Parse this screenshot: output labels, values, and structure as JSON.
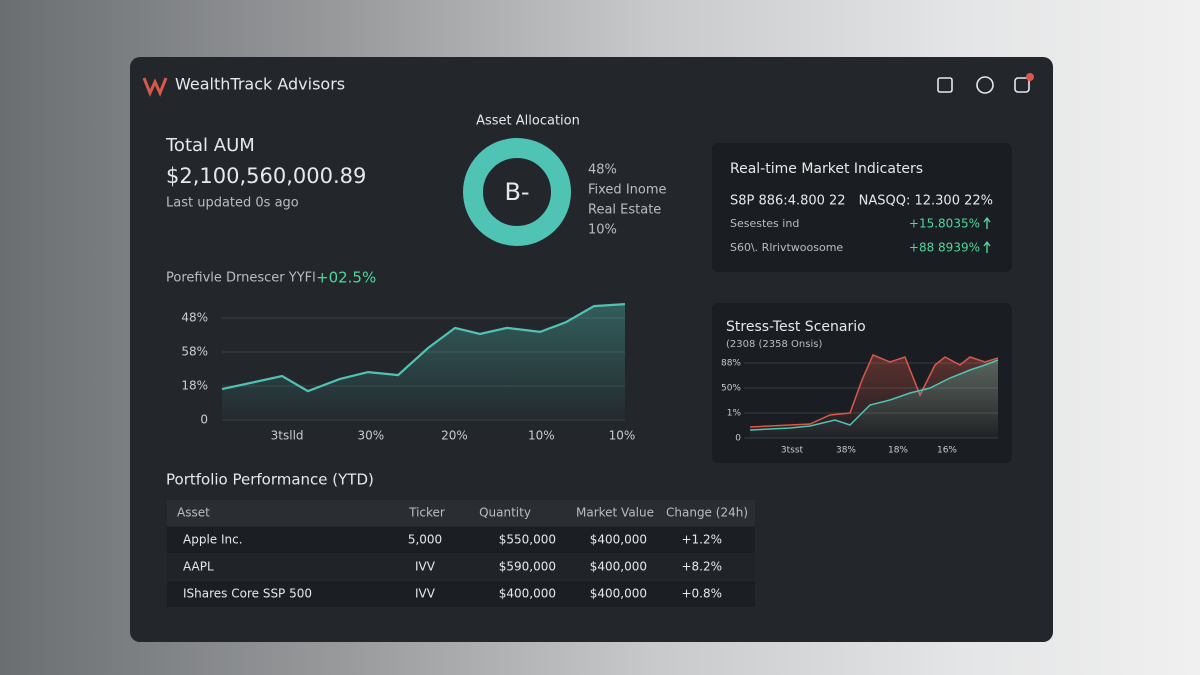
{
  "header": {
    "brand": "WealthTrack Advisors"
  },
  "aum": {
    "title": "Total AUM",
    "value": "$2,100,560,000.89",
    "updated": "Last updated 0s ago"
  },
  "allocation": {
    "title": "Asset Allocation",
    "center": "B-",
    "labels": [
      "48%",
      "Fixed Inome",
      "Real Estate",
      "10%"
    ]
  },
  "market": {
    "title": "Real-time Market Indicaters",
    "rows": [
      [
        "S8P 886:4.800 22",
        "NASQQ: 12.300 22%"
      ],
      [
        "Sesestes ind",
        "+15.8035%"
      ],
      [
        "S60\\. Rlrivtwoosome",
        "+88 8939%"
      ]
    ]
  },
  "table": {
    "title": "Portfolio Performance (YTD)",
    "columns": [
      "Asset",
      "Ticker",
      "Quantity",
      "Market Value",
      "Change (24h)"
    ],
    "rows": [
      [
        "Apple Inc.",
        "5,000",
        "$550,000",
        "$400,000",
        "+1.2%"
      ],
      [
        "AAPL",
        "IVV",
        "$590,000",
        "$400,000",
        "+8.2%"
      ],
      [
        "IShares Core SSP 500",
        "IVV",
        "$400,000",
        "$400,000",
        "+0.8%"
      ]
    ]
  },
  "chart_data": [
    {
      "type": "area",
      "title": "Porefivle Drnescer YYFl",
      "annotation": "+02.5%",
      "xlim": [
        0,
        13
      ],
      "xticks": [
        {
          "value": 2.1,
          "label": "3tslld"
        },
        {
          "value": 4.8,
          "label": "30%"
        },
        {
          "value": 7.5,
          "label": "20%"
        },
        {
          "value": 10.3,
          "label": "10%"
        },
        {
          "value": 12.9,
          "label": "10%"
        }
      ],
      "ylim": [
        0,
        4
      ],
      "yticks": [
        {
          "value": 3,
          "label": "48%"
        },
        {
          "value": 2,
          "label": "58%"
        },
        {
          "value": 1,
          "label": "18%"
        },
        0
      ],
      "grid": true,
      "series": [
        {
          "color": "#4fc3b4",
          "x": [
            0,
            1.94,
            2.77,
            3.81,
            4.71,
            5.68,
            6.65,
            7.52,
            8.32,
            9.19,
            10.26,
            11.1,
            12.0,
            13
          ],
          "values": [
            0.91,
            1.29,
            0.85,
            1.21,
            1.41,
            1.32,
            2.12,
            2.71,
            2.53,
            2.71,
            2.59,
            2.88,
            3.35,
            3.41
          ]
        }
      ]
    },
    {
      "type": "line",
      "title": "Stress-Test Scenario",
      "subtitle": "(2308 (2358 Onsis)",
      "xlim": [
        0,
        248
      ],
      "xticks": [
        {
          "value": 42,
          "label": "3tsst"
        },
        {
          "value": 96,
          "label": "38%"
        },
        {
          "value": 148,
          "label": "18%"
        },
        {
          "value": 197,
          "label": "16%"
        }
      ],
      "ylim": [
        0,
        3.6
      ],
      "yticks": [
        {
          "value": 3,
          "label": "88%"
        },
        {
          "value": 2,
          "label": "50%"
        },
        {
          "value": 1,
          "label": "1%"
        },
        0
      ],
      "grid": true,
      "series": [
        {
          "color": "#d9584a",
          "x": [
            0,
            40,
            60,
            80,
            100,
            112,
            123,
            140,
            155,
            170,
            185,
            195,
            210,
            220,
            235,
            248
          ],
          "values": [
            0.44,
            0.52,
            0.56,
            0.92,
            1.0,
            2.32,
            3.32,
            3.04,
            3.24,
            1.72,
            2.92,
            3.24,
            2.92,
            3.24,
            3.04,
            3.2
          ]
        },
        {
          "color": "#4fc3b4",
          "x": [
            0,
            40,
            60,
            85,
            100,
            120,
            140,
            160,
            180,
            200,
            220,
            235,
            248
          ],
          "values": [
            0.32,
            0.4,
            0.48,
            0.72,
            0.52,
            1.32,
            1.52,
            1.8,
            2.0,
            2.4,
            2.72,
            2.92,
            3.12
          ]
        }
      ]
    }
  ]
}
